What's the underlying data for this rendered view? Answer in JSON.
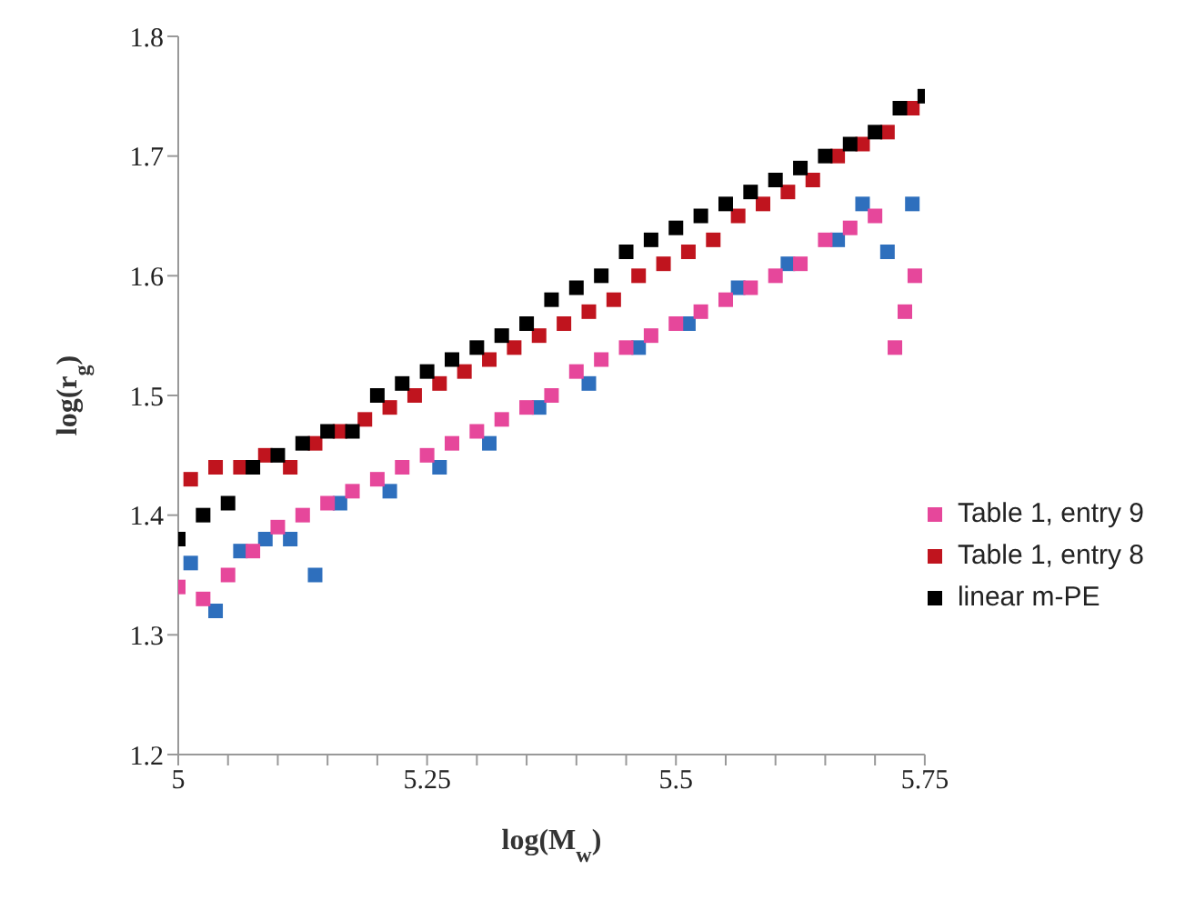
{
  "chart_data": {
    "type": "scatter",
    "xlabel": "log(M$_{w}$)",
    "ylabel": "log(r$_{g}$)",
    "xlim": [
      5,
      5.75
    ],
    "ylim": [
      1.2,
      1.8
    ],
    "xticks": [
      5,
      {
        "value": 5.05,
        "label": null
      },
      {
        "value": 5.1,
        "label": null
      },
      {
        "value": 5.15,
        "label": null
      },
      {
        "value": 5.2,
        "label": null
      },
      5.25,
      {
        "value": 5.3,
        "label": null
      },
      {
        "value": 5.35,
        "label": null
      },
      {
        "value": 5.4,
        "label": null
      },
      {
        "value": 5.45,
        "label": null
      },
      5.5,
      {
        "value": 5.55,
        "label": null
      },
      {
        "value": 5.6,
        "label": null
      },
      {
        "value": 5.65,
        "label": null
      },
      {
        "value": 5.7,
        "label": null
      },
      5.75
    ],
    "yticks": [
      1.2,
      1.3,
      1.4,
      1.5,
      1.6,
      1.7,
      1.8
    ],
    "marker": "square",
    "legend": "right",
    "series": [
      {
        "color": "#2e6fbd",
        "x": [
          5.0125,
          5.0375,
          5.0625,
          5.0875,
          5.1125,
          5.1375,
          5.1625,
          5.2125,
          5.2625,
          5.3125,
          5.3625,
          5.4125,
          5.4625,
          5.5125,
          5.5625,
          5.6125,
          5.6625,
          5.6875,
          5.7125,
          5.7375
        ],
        "values": [
          1.36,
          1.32,
          1.37,
          1.38,
          1.38,
          1.35,
          1.41,
          1.42,
          1.44,
          1.46,
          1.49,
          1.51,
          1.54,
          1.56,
          1.59,
          1.61,
          1.63,
          1.66,
          1.62,
          1.66
        ]
      },
      {
        "name": "Table 1, entry 9",
        "color": "#e6479b",
        "x": [
          5.0,
          5.025,
          5.05,
          5.075,
          5.1,
          5.125,
          5.15,
          5.175,
          5.2,
          5.225,
          5.25,
          5.275,
          5.3,
          5.325,
          5.35,
          5.375,
          5.4,
          5.425,
          5.45,
          5.475,
          5.5,
          5.525,
          5.55,
          5.575,
          5.6,
          5.625,
          5.65,
          5.675,
          5.7,
          5.72,
          5.74,
          5.73
        ],
        "values": [
          1.34,
          1.33,
          1.35,
          1.37,
          1.39,
          1.4,
          1.41,
          1.42,
          1.43,
          1.44,
          1.45,
          1.46,
          1.47,
          1.48,
          1.49,
          1.5,
          1.52,
          1.53,
          1.54,
          1.55,
          1.56,
          1.57,
          1.58,
          1.59,
          1.6,
          1.61,
          1.63,
          1.64,
          1.65,
          1.54,
          1.6,
          1.57
        ]
      },
      {
        "name": "Table 1, entry 8",
        "color": "#c0141e",
        "x": [
          5.0125,
          5.0375,
          5.0625,
          5.0875,
          5.1125,
          5.1375,
          5.1625,
          5.1875,
          5.2125,
          5.2375,
          5.2625,
          5.2875,
          5.3125,
          5.3375,
          5.3625,
          5.3875,
          5.4125,
          5.4375,
          5.4625,
          5.4875,
          5.5125,
          5.5375,
          5.5625,
          5.5875,
          5.6125,
          5.6375,
          5.6625,
          5.6875,
          5.7125,
          5.7375
        ],
        "values": [
          1.43,
          1.44,
          1.44,
          1.45,
          1.44,
          1.46,
          1.47,
          1.48,
          1.49,
          1.5,
          1.51,
          1.52,
          1.53,
          1.54,
          1.55,
          1.56,
          1.57,
          1.58,
          1.6,
          1.61,
          1.62,
          1.63,
          1.65,
          1.66,
          1.67,
          1.68,
          1.7,
          1.71,
          1.72,
          1.74
        ]
      },
      {
        "name": "linear m-PE",
        "color": "#000000",
        "x": [
          5.0,
          5.025,
          5.05,
          5.075,
          5.1,
          5.125,
          5.15,
          5.175,
          5.2,
          5.225,
          5.25,
          5.275,
          5.3,
          5.325,
          5.35,
          5.375,
          5.4,
          5.425,
          5.45,
          5.475,
          5.5,
          5.525,
          5.55,
          5.575,
          5.6,
          5.625,
          5.65,
          5.675,
          5.7,
          5.725,
          5.75
        ],
        "values": [
          1.38,
          1.4,
          1.41,
          1.44,
          1.45,
          1.46,
          1.47,
          1.47,
          1.5,
          1.51,
          1.52,
          1.53,
          1.54,
          1.55,
          1.56,
          1.58,
          1.59,
          1.6,
          1.62,
          1.63,
          1.64,
          1.65,
          1.66,
          1.67,
          1.68,
          1.69,
          1.7,
          1.71,
          1.72,
          1.74,
          1.75
        ]
      }
    ]
  }
}
